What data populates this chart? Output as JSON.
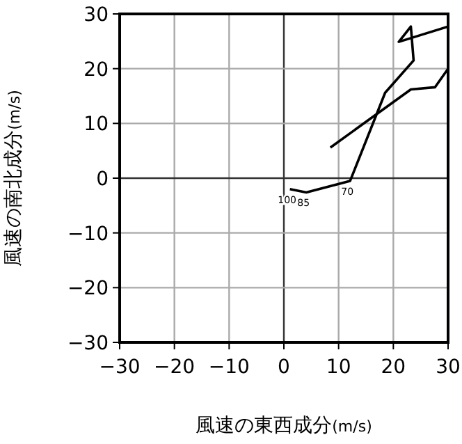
{
  "chart_data": {
    "type": "line",
    "xlabel": "風速の東西成分(m/s)",
    "ylabel": "風速の南北成分(m/s)",
    "series": [
      {
        "color": "#000000",
        "x": [
          1.1,
          4.1,
          12.1,
          18.5,
          23.7,
          23.2,
          21,
          30,
          30,
          27.6,
          23.2,
          8.5
        ],
        "values": [
          -2.0,
          -2.6,
          -0.5,
          15.6,
          21.5,
          27.7,
          24.9,
          27.7,
          20,
          16.6,
          16.2,
          5.6
        ]
      }
    ],
    "xlim": [
      -30,
      30
    ],
    "ylim": [
      -30,
      30
    ],
    "xticks": [
      {
        "value": -30,
        "label": "−30"
      },
      {
        "value": -20,
        "label": "−20"
      },
      {
        "value": -10,
        "label": "−10"
      },
      0,
      10,
      20,
      30
    ],
    "yticks": [
      {
        "value": -30,
        "label": "−30"
      },
      {
        "value": -20,
        "label": "−20"
      },
      {
        "value": -10,
        "label": "−10"
      },
      0,
      10,
      20,
      30
    ],
    "grid": true,
    "marker": "none",
    "line_style": "solid",
    "annotations": [
      {
        "text": "100",
        "x": 1.1,
        "y": -2.0
      },
      {
        "text": "85",
        "x": 4.1,
        "y": -2.6
      },
      {
        "text": "70",
        "x": 12.1,
        "y": -0.5
      }
    ]
  }
}
